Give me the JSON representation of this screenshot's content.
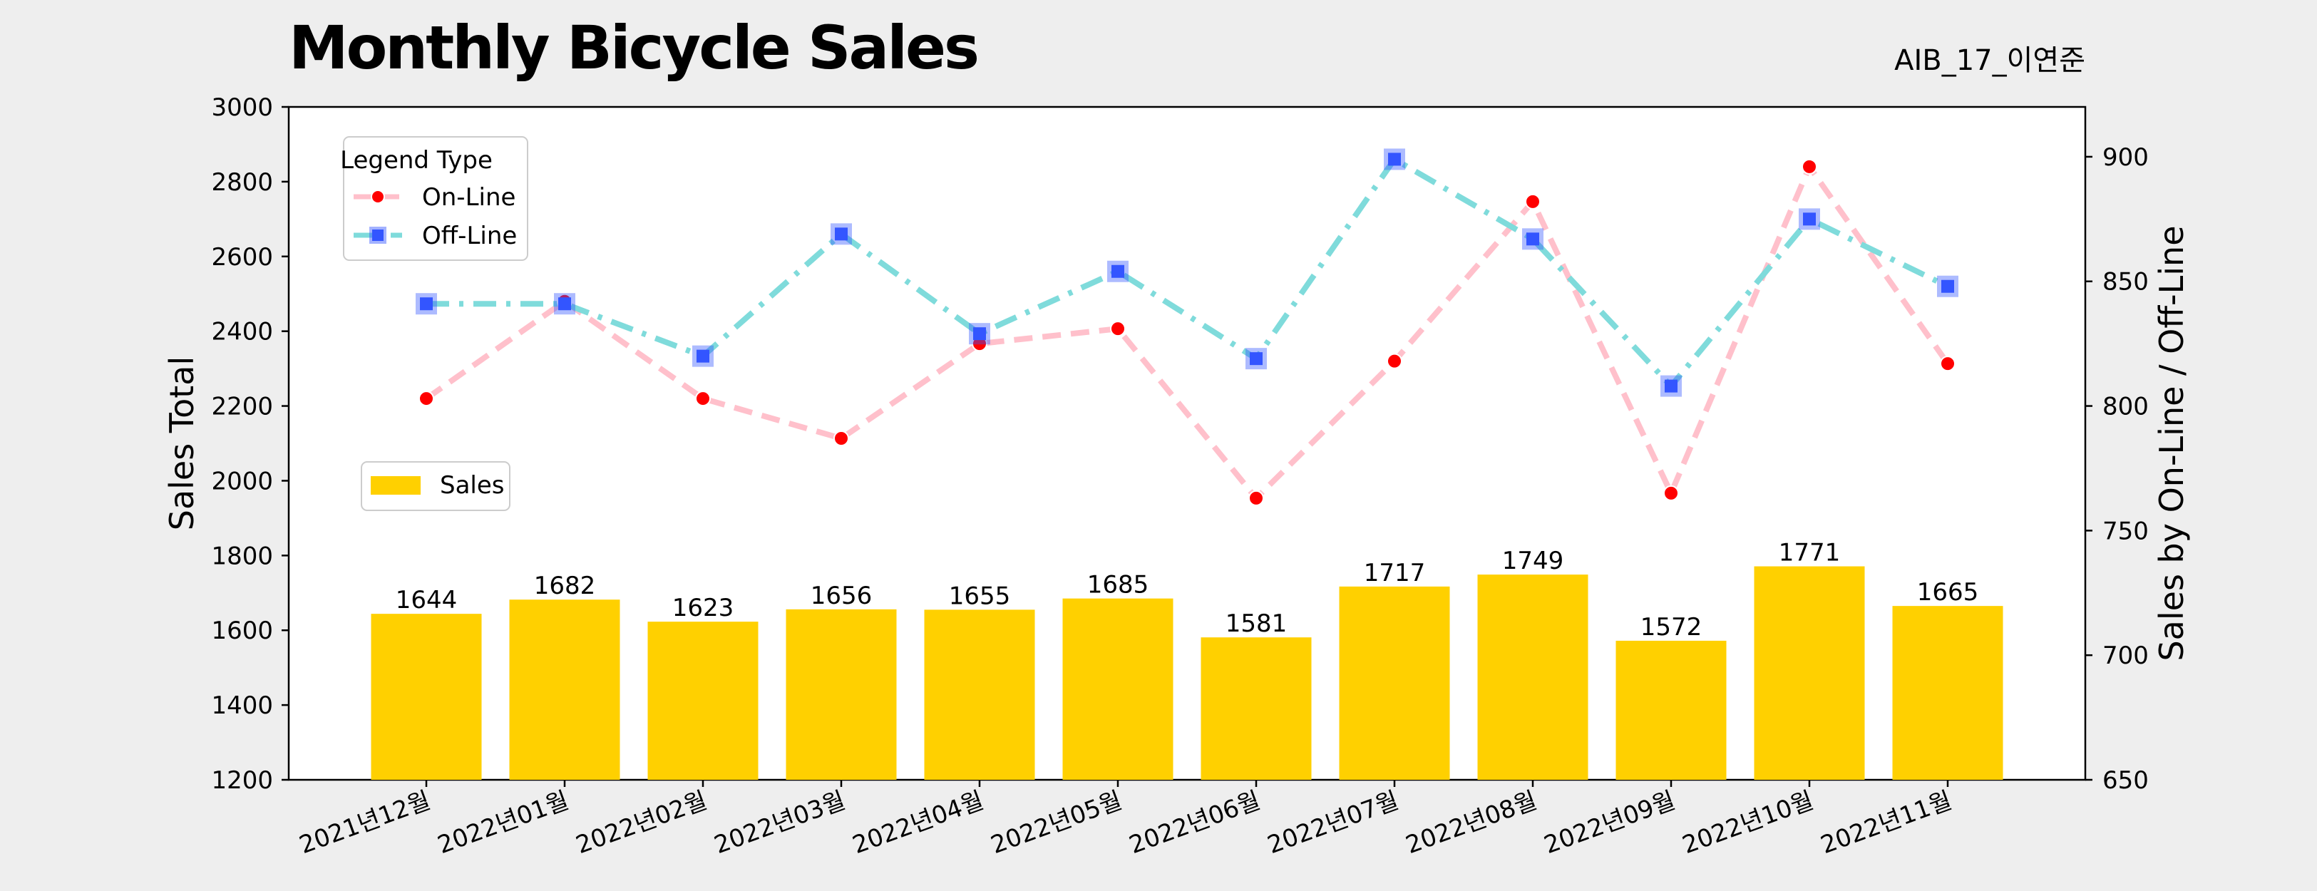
{
  "title": "Monthly Bicycle Sales",
  "tag": "AIB_17_이연준",
  "chart_data": {
    "type": "bar+line",
    "title": "Monthly Bicycle Sales",
    "categories": [
      "2021년12월",
      "2022년01월",
      "2022년02월",
      "2022년03월",
      "2022년04월",
      "2022년05월",
      "2022년06월",
      "2022년07월",
      "2022년08월",
      "2022년09월",
      "2022년10월",
      "2022년11월"
    ],
    "ylabel_left": "Sales Total",
    "ylabel_right": "Sales by On-Line / Off-Line",
    "ylim_left": [
      1200,
      3000
    ],
    "yticks_left": [
      1200,
      1400,
      1600,
      1800,
      2000,
      2200,
      2400,
      2600,
      2800,
      3000
    ],
    "ylim_right": [
      650,
      920
    ],
    "yticks_right": [
      650,
      700,
      750,
      800,
      850,
      900
    ],
    "bar_series": {
      "name": "Sales",
      "color": "#FFD000",
      "values": [
        1644,
        1682,
        1623,
        1656,
        1655,
        1685,
        1581,
        1717,
        1749,
        1572,
        1771,
        1665
      ]
    },
    "line_series": [
      {
        "name": "On-Line",
        "color": "#FFC0CB",
        "marker_color": "#FF0000",
        "values": [
          803,
          842,
          803,
          787,
          825,
          831,
          763,
          818,
          882,
          765,
          896,
          817
        ]
      },
      {
        "name": "Off-Line",
        "color": "#7FDBDB",
        "marker_color": "#3355FF",
        "values": [
          841,
          841,
          820,
          869,
          829,
          854,
          819,
          899,
          867,
          808,
          875,
          848
        ]
      }
    ],
    "line_legend_title": "Legend Type",
    "line_legend_position": "top-left",
    "bar_legend_position": "center-left",
    "grid": false
  }
}
